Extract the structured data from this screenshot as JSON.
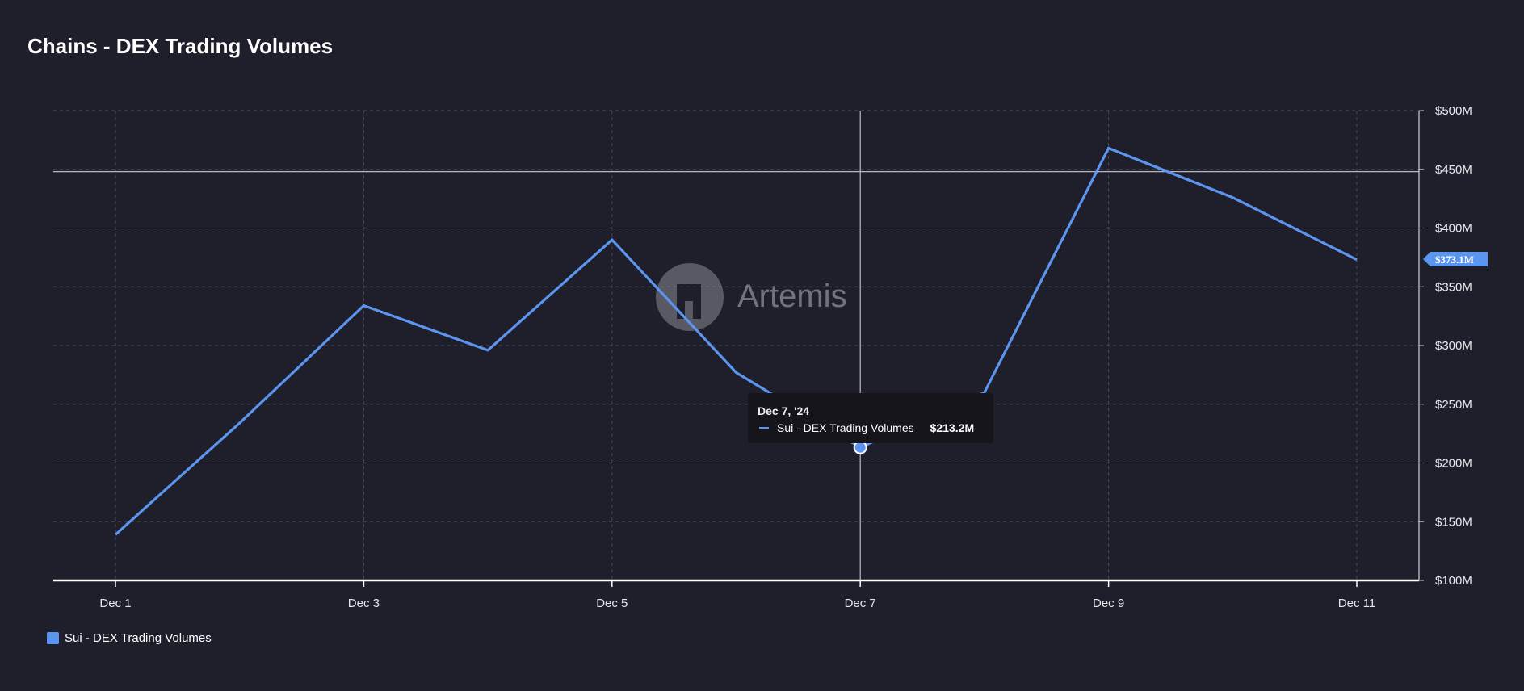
{
  "title": "Chains - DEX Trading Volumes",
  "watermark": "Artemis",
  "tooltip": {
    "date": "Dec 7, '24",
    "series": "Sui - DEX Trading Volumes",
    "value": "$213.2M"
  },
  "last_value_label": "$373.1M",
  "legend": {
    "label": "Sui - DEX Trading Volumes"
  },
  "colors": {
    "background": "#1f1f2b",
    "line": "#5b95ef",
    "grid": "#4a4a58",
    "axis": "#ffffff"
  },
  "chart_data": {
    "type": "line",
    "title": "Chains - DEX Trading Volumes",
    "x": [
      "Dec 1",
      "Dec 2",
      "Dec 3",
      "Dec 4",
      "Dec 5",
      "Dec 6",
      "Dec 7",
      "Dec 8",
      "Dec 9",
      "Dec 10",
      "Dec 11"
    ],
    "x_tick_labels": [
      "Dec 1",
      "Dec 3",
      "Dec 5",
      "Dec 7",
      "Dec 9",
      "Dec 11"
    ],
    "series": [
      {
        "name": "Sui - DEX Trading Volumes",
        "values": [
          139,
          234,
          334,
          296,
          390,
          277,
          213.2,
          260,
          468,
          426,
          373.1
        ]
      }
    ],
    "y_unit": "$M",
    "ylim": [
      100,
      500
    ],
    "y_ticks": [
      "$100M",
      "$150M",
      "$200M",
      "$250M",
      "$300M",
      "$350M",
      "$400M",
      "$450M",
      "$500M"
    ],
    "y_axis_position": "right",
    "crosshair_x": "Dec 7",
    "crosshair_y": 448,
    "grid": true,
    "legend_position": "bottom-left"
  }
}
